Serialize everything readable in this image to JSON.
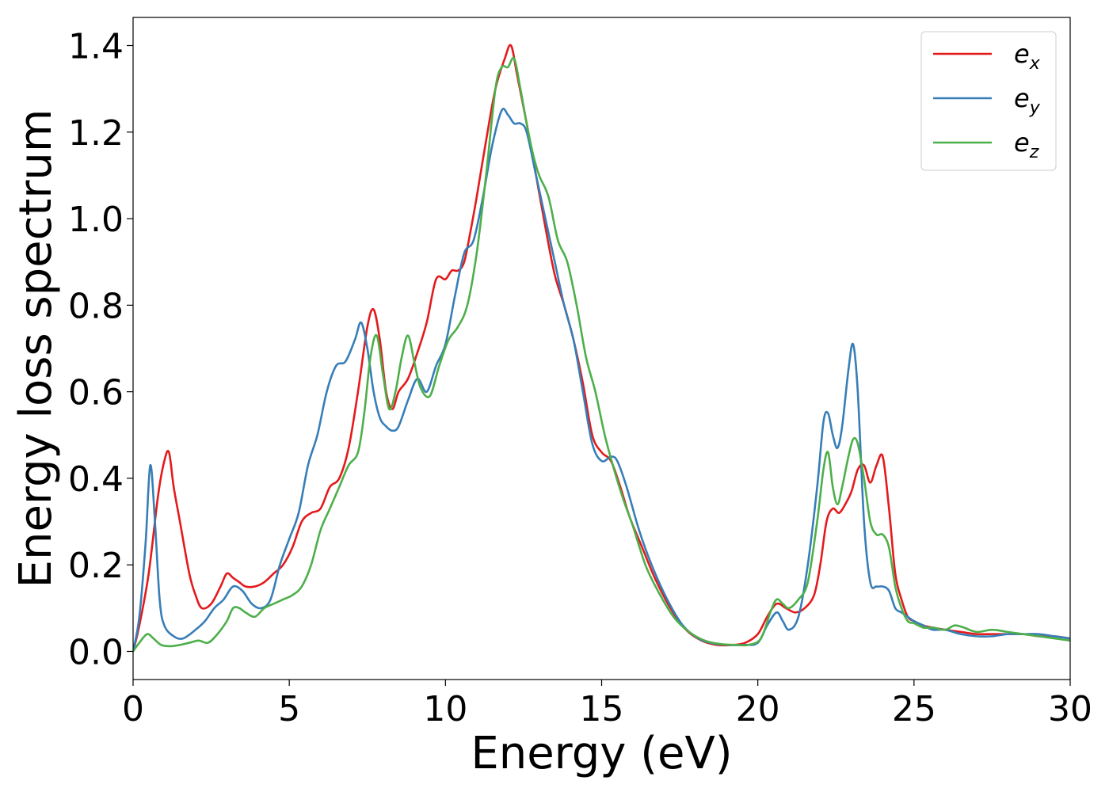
{
  "chart_data": {
    "type": "line",
    "title": "",
    "xlabel": "Energy (eV)",
    "ylabel": "Energy loss spectrum",
    "xlim": [
      0,
      30
    ],
    "ylim": [
      -0.065,
      1.465
    ],
    "xticks": [
      0,
      5,
      10,
      15,
      20,
      25,
      30
    ],
    "xtick_labels": [
      "0",
      "5",
      "10",
      "15",
      "20",
      "25",
      "30"
    ],
    "yticks": [
      0.0,
      0.2,
      0.4,
      0.6,
      0.8,
      1.0,
      1.2,
      1.4
    ],
    "ytick_labels": [
      "0.0",
      "0.2",
      "0.4",
      "0.6",
      "0.8",
      "1.0",
      "1.2",
      "1.4"
    ],
    "grid": false,
    "legend_position": "top-right",
    "series": [
      {
        "name": "e",
        "subscript": "x",
        "color": "#e41a1c",
        "x": [
          0,
          0.2,
          0.5,
          0.8,
          1.0,
          1.15,
          1.3,
          1.5,
          1.8,
          2.0,
          2.2,
          2.5,
          2.8,
          3.0,
          3.2,
          3.4,
          3.6,
          3.9,
          4.2,
          4.5,
          4.8,
          5.1,
          5.4,
          5.7,
          6.0,
          6.3,
          6.6,
          6.9,
          7.2,
          7.5,
          7.7,
          7.9,
          8.1,
          8.3,
          8.5,
          8.8,
          9.1,
          9.4,
          9.7,
          10.0,
          10.2,
          10.4,
          10.6,
          10.8,
          11.0,
          11.3,
          11.6,
          11.9,
          12.1,
          12.3,
          12.6,
          12.9,
          13.2,
          13.5,
          13.8,
          14.1,
          14.4,
          14.7,
          15.0,
          15.3,
          15.6,
          15.9,
          16.3,
          16.7,
          17.2,
          17.7,
          18.2,
          18.7,
          19.2,
          19.6,
          20.0,
          20.3,
          20.6,
          20.9,
          21.2,
          21.5,
          21.8,
          22.0,
          22.2,
          22.4,
          22.6,
          22.8,
          23.0,
          23.2,
          23.4,
          23.6,
          23.8,
          24.0,
          24.2,
          24.4,
          24.6,
          24.8,
          25.0,
          25.3,
          25.6,
          26.0,
          26.5,
          27.0,
          27.5,
          28.0,
          28.5,
          29.0,
          29.5,
          30.0
        ],
        "y": [
          0.0,
          0.06,
          0.18,
          0.36,
          0.44,
          0.46,
          0.38,
          0.3,
          0.18,
          0.13,
          0.1,
          0.11,
          0.15,
          0.18,
          0.17,
          0.16,
          0.15,
          0.15,
          0.16,
          0.18,
          0.2,
          0.24,
          0.3,
          0.32,
          0.33,
          0.38,
          0.4,
          0.47,
          0.6,
          0.75,
          0.79,
          0.72,
          0.6,
          0.56,
          0.6,
          0.63,
          0.69,
          0.76,
          0.86,
          0.86,
          0.88,
          0.88,
          0.9,
          0.97,
          1.05,
          1.18,
          1.3,
          1.37,
          1.4,
          1.33,
          1.22,
          1.1,
          0.98,
          0.87,
          0.8,
          0.72,
          0.62,
          0.5,
          0.46,
          0.44,
          0.38,
          0.31,
          0.24,
          0.17,
          0.1,
          0.05,
          0.025,
          0.015,
          0.015,
          0.02,
          0.04,
          0.08,
          0.11,
          0.1,
          0.09,
          0.1,
          0.13,
          0.2,
          0.3,
          0.33,
          0.32,
          0.34,
          0.37,
          0.42,
          0.43,
          0.39,
          0.43,
          0.45,
          0.33,
          0.18,
          0.12,
          0.08,
          0.07,
          0.06,
          0.055,
          0.05,
          0.045,
          0.04,
          0.04,
          0.04,
          0.04,
          0.035,
          0.035,
          0.03
        ]
      },
      {
        "name": "e",
        "subscript": "y",
        "color": "#377eb8",
        "x": [
          0,
          0.2,
          0.4,
          0.55,
          0.7,
          0.85,
          1.0,
          1.3,
          1.6,
          2.0,
          2.3,
          2.6,
          2.9,
          3.2,
          3.5,
          3.8,
          4.1,
          4.4,
          4.7,
          5.0,
          5.3,
          5.6,
          5.9,
          6.2,
          6.5,
          6.8,
          7.1,
          7.3,
          7.5,
          7.7,
          7.9,
          8.1,
          8.3,
          8.5,
          8.8,
          9.1,
          9.4,
          9.7,
          10.0,
          10.3,
          10.6,
          10.9,
          11.2,
          11.5,
          11.8,
          12.0,
          12.2,
          12.4,
          12.6,
          12.9,
          13.2,
          13.5,
          13.8,
          14.1,
          14.4,
          14.7,
          15.0,
          15.3,
          15.5,
          15.8,
          16.2,
          16.6,
          17.1,
          17.6,
          18.1,
          18.6,
          19.1,
          19.6,
          20.0,
          20.3,
          20.6,
          20.8,
          21.0,
          21.3,
          21.6,
          21.9,
          22.1,
          22.25,
          22.4,
          22.55,
          22.7,
          22.9,
          23.05,
          23.2,
          23.4,
          23.6,
          23.8,
          24.0,
          24.2,
          24.4,
          24.6,
          24.8,
          25.0,
          25.3,
          25.6,
          26.0,
          26.5,
          27.0,
          27.5,
          28.0,
          28.5,
          29.0,
          29.5,
          30.0
        ],
        "y": [
          0.0,
          0.08,
          0.25,
          0.43,
          0.3,
          0.12,
          0.06,
          0.035,
          0.03,
          0.05,
          0.07,
          0.1,
          0.12,
          0.15,
          0.14,
          0.11,
          0.1,
          0.12,
          0.2,
          0.26,
          0.32,
          0.43,
          0.5,
          0.6,
          0.66,
          0.67,
          0.72,
          0.76,
          0.7,
          0.6,
          0.54,
          0.52,
          0.51,
          0.52,
          0.58,
          0.63,
          0.6,
          0.66,
          0.71,
          0.82,
          0.92,
          0.95,
          1.05,
          1.17,
          1.25,
          1.24,
          1.22,
          1.22,
          1.2,
          1.1,
          1.0,
          0.9,
          0.8,
          0.72,
          0.6,
          0.48,
          0.44,
          0.45,
          0.44,
          0.38,
          0.28,
          0.2,
          0.12,
          0.06,
          0.03,
          0.018,
          0.015,
          0.015,
          0.02,
          0.06,
          0.09,
          0.07,
          0.05,
          0.08,
          0.2,
          0.38,
          0.53,
          0.55,
          0.5,
          0.47,
          0.52,
          0.65,
          0.71,
          0.6,
          0.3,
          0.16,
          0.15,
          0.15,
          0.14,
          0.1,
          0.09,
          0.08,
          0.07,
          0.06,
          0.05,
          0.05,
          0.04,
          0.035,
          0.035,
          0.04,
          0.04,
          0.04,
          0.035,
          0.03
        ]
      },
      {
        "name": "e",
        "subscript": "z",
        "color": "#4daf4a",
        "x": [
          0,
          0.2,
          0.45,
          0.65,
          0.9,
          1.2,
          1.5,
          1.8,
          2.1,
          2.4,
          2.7,
          3.0,
          3.2,
          3.4,
          3.6,
          3.9,
          4.2,
          4.5,
          4.8,
          5.1,
          5.4,
          5.7,
          6.0,
          6.3,
          6.6,
          6.9,
          7.2,
          7.4,
          7.6,
          7.8,
          8.0,
          8.2,
          8.4,
          8.6,
          8.8,
          9.0,
          9.2,
          9.5,
          9.8,
          10.1,
          10.4,
          10.7,
          11.0,
          11.3,
          11.6,
          11.8,
          12.0,
          12.2,
          12.4,
          12.6,
          12.8,
          13.0,
          13.3,
          13.6,
          13.9,
          14.2,
          14.5,
          14.8,
          15.1,
          15.4,
          15.7,
          16.0,
          16.4,
          16.8,
          17.3,
          17.8,
          18.3,
          18.8,
          19.3,
          19.7,
          20.1,
          20.4,
          20.6,
          20.8,
          21.0,
          21.3,
          21.6,
          21.9,
          22.1,
          22.25,
          22.4,
          22.55,
          22.7,
          22.9,
          23.05,
          23.2,
          23.4,
          23.6,
          23.8,
          24.0,
          24.2,
          24.4,
          24.6,
          24.8,
          25.0,
          25.3,
          25.6,
          26.0,
          26.3,
          26.6,
          27.0,
          27.5,
          28.0,
          28.5,
          29.0,
          29.5,
          30.0
        ],
        "y": [
          0.0,
          0.02,
          0.04,
          0.03,
          0.015,
          0.012,
          0.015,
          0.02,
          0.025,
          0.02,
          0.04,
          0.07,
          0.1,
          0.1,
          0.09,
          0.08,
          0.1,
          0.11,
          0.12,
          0.13,
          0.15,
          0.2,
          0.28,
          0.33,
          0.38,
          0.43,
          0.46,
          0.55,
          0.68,
          0.73,
          0.64,
          0.56,
          0.6,
          0.68,
          0.73,
          0.67,
          0.61,
          0.59,
          0.66,
          0.72,
          0.75,
          0.8,
          0.92,
          1.1,
          1.3,
          1.35,
          1.35,
          1.37,
          1.3,
          1.22,
          1.15,
          1.1,
          1.05,
          0.95,
          0.9,
          0.8,
          0.68,
          0.6,
          0.5,
          0.42,
          0.35,
          0.29,
          0.2,
          0.14,
          0.08,
          0.045,
          0.025,
          0.017,
          0.015,
          0.015,
          0.03,
          0.09,
          0.12,
          0.11,
          0.1,
          0.12,
          0.16,
          0.3,
          0.42,
          0.46,
          0.38,
          0.34,
          0.38,
          0.45,
          0.49,
          0.48,
          0.4,
          0.3,
          0.27,
          0.27,
          0.24,
          0.15,
          0.1,
          0.07,
          0.065,
          0.055,
          0.055,
          0.05,
          0.06,
          0.055,
          0.045,
          0.05,
          0.045,
          0.04,
          0.035,
          0.03,
          0.025
        ]
      }
    ]
  }
}
